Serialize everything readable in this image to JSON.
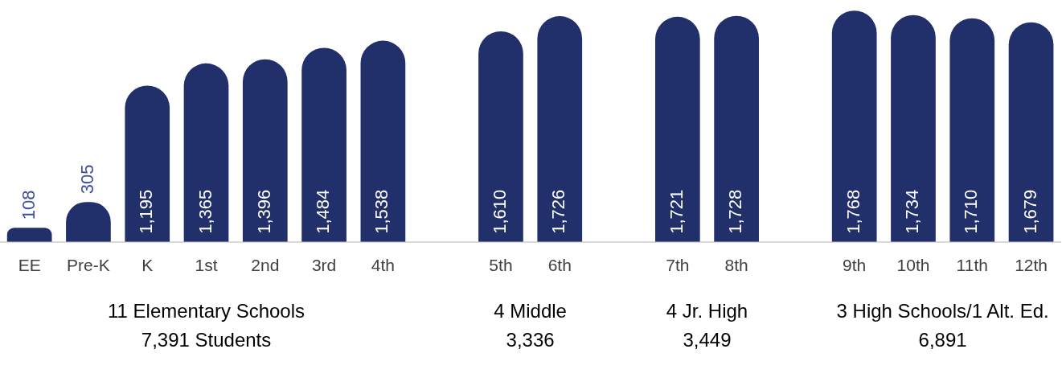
{
  "chart_data": {
    "type": "bar",
    "categories": [
      "EE",
      "Pre-K",
      "K",
      "1st",
      "2nd",
      "3rd",
      "4th",
      null,
      "5th",
      "6th",
      null,
      "7th",
      "8th",
      null,
      "9th",
      "10th",
      "11th",
      "12th"
    ],
    "values": [
      108,
      305,
      1195,
      1365,
      1396,
      1484,
      1538,
      null,
      1610,
      1726,
      null,
      1721,
      1728,
      null,
      1768,
      1734,
      1710,
      1679
    ],
    "color": "#212f6b",
    "value_labels": [
      "108",
      "305",
      "1,195",
      "1,365",
      "1,396",
      "1,484",
      "1,538",
      null,
      "1,610",
      "1,726",
      null,
      "1,721",
      "1,728",
      null,
      "1,768",
      "1,734",
      "1,710",
      "1,679"
    ],
    "grid": false,
    "legend": false,
    "annotations": [
      "11 Elementary Schools\n7,391 Students",
      "4 Middle\n3,336",
      "4 Jr. High\n3,449",
      "3 High Schools/1 Alt. Ed.\n6,891"
    ]
  }
}
